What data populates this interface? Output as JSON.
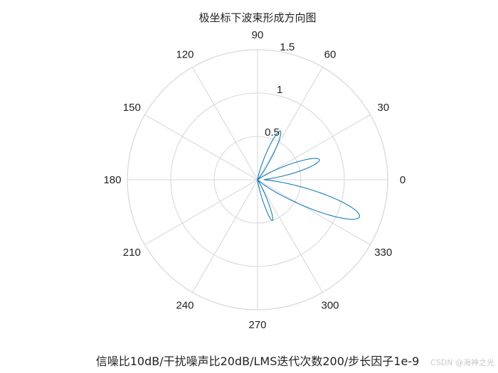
{
  "chart_data": {
    "type": "line",
    "coordinate_system": "polar",
    "title": "极坐标下波束形成方向图",
    "xlabel": "信噪比10dB/干扰噪声比20dB/LMS迭代次数200/步长因子1e-9",
    "angle_ticks_deg": [
      0,
      30,
      60,
      90,
      120,
      150,
      180,
      210,
      240,
      270,
      300,
      330
    ],
    "radius_ticks": [
      0.5,
      1,
      1.5
    ],
    "rlim": [
      0,
      1.5
    ],
    "angle_tick_labels": [
      "0",
      "30",
      "60",
      "90",
      "120",
      "150",
      "180",
      "210",
      "240",
      "270",
      "300",
      "330"
    ],
    "radius_tick_labels": [
      "0.5",
      "1",
      "1.5"
    ],
    "grid": true,
    "line_color": "#0072BD",
    "grid_color": "#d9d9d9",
    "lobes": [
      {
        "center_deg": -20,
        "peak": 1.25,
        "width_deg": 8
      },
      {
        "center_deg": 18,
        "peak": 0.75,
        "width_deg": 7
      },
      {
        "center_deg": 65,
        "peak": 0.62,
        "width_deg": 6
      },
      {
        "center_deg": -70,
        "peak": 0.5,
        "width_deg": 5
      }
    ],
    "angle_range_deg": [
      -90,
      90
    ]
  },
  "watermark": "CSDN @海神之光"
}
